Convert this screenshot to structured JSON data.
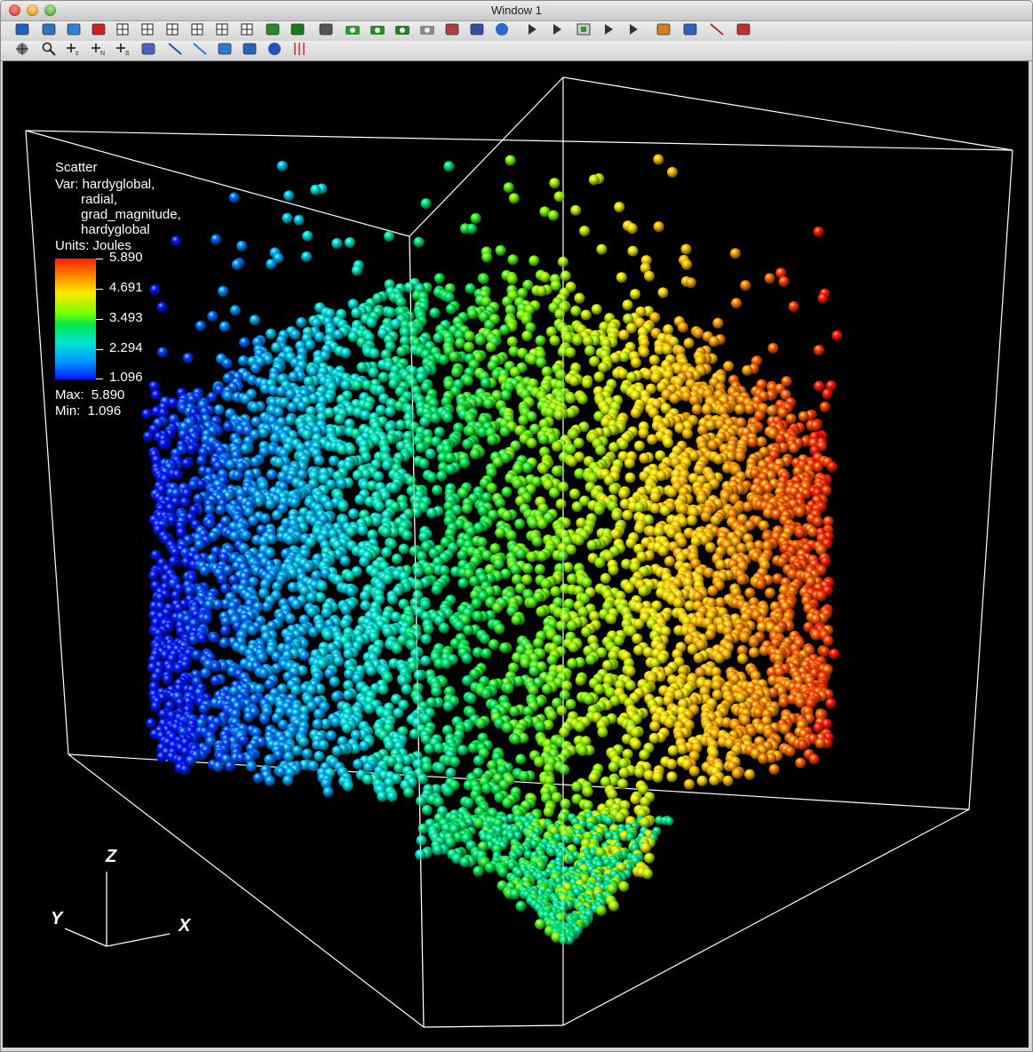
{
  "window": {
    "title": "Window 1"
  },
  "toolbar_row1": [
    {
      "icon": "active-window-icon",
      "color": "#2060c0"
    },
    {
      "icon": "new-window-icon",
      "color": "#3070c0"
    },
    {
      "icon": "clone-window-icon",
      "color": "#3080d0"
    },
    {
      "icon": "delete-window-icon",
      "color": "#d02020"
    },
    {
      "icon": "layout-1x1-icon",
      "color": "#333333"
    },
    {
      "icon": "layout-1x2-icon",
      "color": "#333333"
    },
    {
      "icon": "layout-2x2-icon",
      "color": "#333333"
    },
    {
      "icon": "layout-2x3-icon",
      "color": "#333333"
    },
    {
      "icon": "layout-3x3-icon",
      "color": "#333333"
    },
    {
      "icon": "layout-4x4-icon",
      "color": "#333333"
    },
    {
      "icon": "lock-view-icon",
      "color": "#2a8a2a"
    },
    {
      "icon": "invert-background-icon",
      "color": "#1a7a1a"
    },
    {
      "icon": "perspective-box-icon",
      "color": "#555555"
    },
    {
      "icon": "save-image-icon",
      "color": "#2a9a2a"
    },
    {
      "icon": "camera-icon",
      "color": "#2a8a2a"
    },
    {
      "icon": "camera-icon",
      "color": "#2a7a2a"
    },
    {
      "icon": "camera-grey-icon",
      "color": "#888888"
    },
    {
      "icon": "clear-plots-icon",
      "color": "#b04040"
    },
    {
      "icon": "print-icon",
      "color": "#3050a0"
    },
    {
      "icon": "globe-icon",
      "color": "#2a6ad0"
    },
    {
      "icon": "first-frame-icon",
      "color": "#333333"
    },
    {
      "icon": "previous-frame-icon",
      "color": "#333333"
    },
    {
      "icon": "stop-icon",
      "color": "#2a9a2a"
    },
    {
      "icon": "play-icon",
      "color": "#333333"
    },
    {
      "icon": "last-frame-icon",
      "color": "#333333"
    },
    {
      "icon": "plot-list-icon",
      "color": "#d08020"
    },
    {
      "icon": "pick-tool-icon",
      "color": "#3060c0"
    },
    {
      "icon": "lineout-tool-icon",
      "color": "#c03030"
    },
    {
      "icon": "bottle-tool-icon",
      "color": "#c03030"
    }
  ],
  "toolbar_row2": [
    {
      "icon": "navigate-icon",
      "color": "#333333"
    },
    {
      "icon": "zoom-icon",
      "color": "#333333"
    },
    {
      "icon": "zone-pick-icon",
      "label": "z",
      "color": "#222222"
    },
    {
      "icon": "node-pick-icon",
      "label": "N",
      "color": "#222222"
    },
    {
      "icon": "spreadsheet-pick-icon",
      "label": "S",
      "color": "#222222"
    },
    {
      "icon": "curve-icon",
      "color": "#5060c0"
    },
    {
      "icon": "point-tool-icon",
      "color": "#2050b0"
    },
    {
      "icon": "line-tool-icon",
      "color": "#2a7ad0"
    },
    {
      "icon": "plane-tool-icon",
      "color": "#2a7ad0"
    },
    {
      "icon": "box-tool-icon",
      "color": "#2a60c0"
    },
    {
      "icon": "sphere-tool-icon",
      "color": "#2a50c0"
    },
    {
      "icon": "axis-restriction-icon",
      "color": "#c03030"
    }
  ],
  "legend": {
    "plot_type": "Scatter",
    "var_lines": [
      "Var: hardyglobal,",
      "       radial,",
      "       grad_magnitude,",
      "       hardyglobal"
    ],
    "units": "Units: Joules",
    "ticks": [
      "5.890",
      "4.691",
      "3.493",
      "2.294",
      "1.096"
    ],
    "max": "Max:  5.890",
    "min": "Min:  1.096"
  },
  "axes": {
    "x": "X",
    "y": "Y",
    "z": "Z"
  },
  "colors": {
    "background": "#000000",
    "bbox_line": "#ffffff",
    "colormap": [
      "#0018ff",
      "#0099ff",
      "#00e5d0",
      "#00e650",
      "#7dff00",
      "#ffe600",
      "#ff8c00",
      "#ff1a00"
    ]
  },
  "chart_data": {
    "type": "scatter",
    "title": "Scatter",
    "variables": [
      "hardyglobal",
      "radial",
      "grad_magnitude",
      "hardyglobal"
    ],
    "color_variable": "hardyglobal",
    "units": "Joules",
    "color_range": [
      1.096,
      5.89
    ],
    "color_ticks": [
      5.89,
      4.691,
      3.493,
      2.294,
      1.096
    ],
    "xlabel": "X",
    "ylabel": "Y",
    "zlabel": "Z"
  }
}
